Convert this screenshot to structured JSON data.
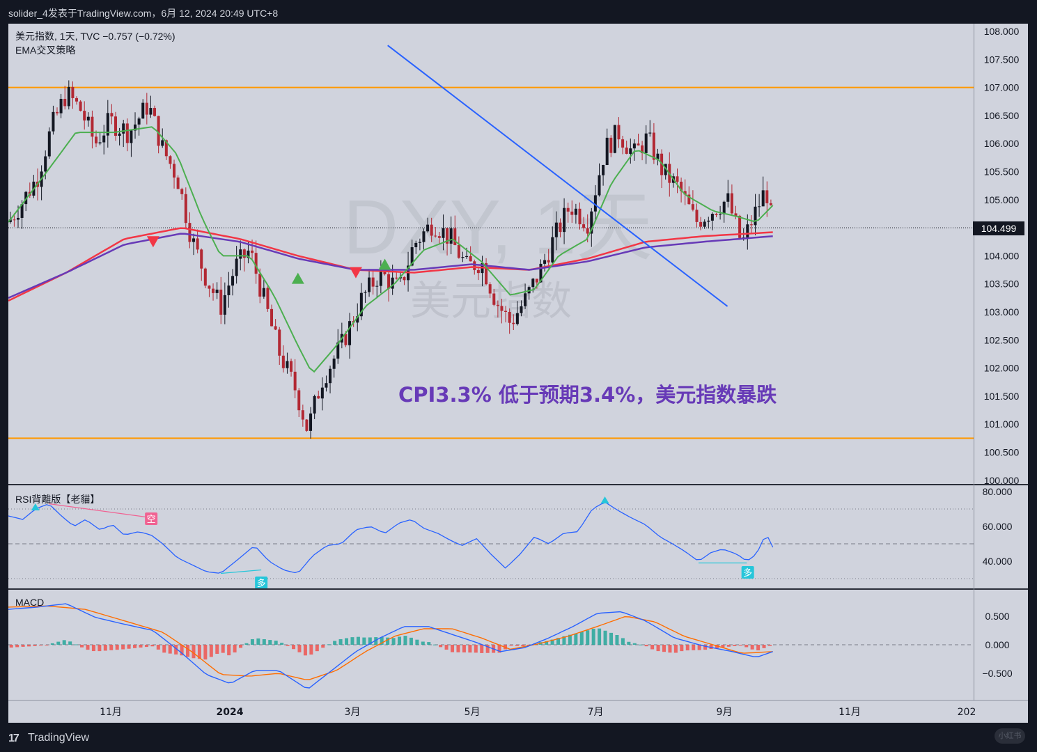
{
  "header": {
    "publish_line": "solider_4发表于TradingView.com，6月 12, 2024 20:49 UTC+8"
  },
  "legend": {
    "symbol_line": "美元指数, 1天, TVC  −0.757 (−0.72%)",
    "strategy_name": "EMA交叉策略",
    "rsi_name": "RSI背離版【老貓】",
    "macd_name": "MACD"
  },
  "watermark": {
    "ticker": "DXY, 1天",
    "name": "美元指数"
  },
  "annotation": {
    "text": "CPI3.3% 低于预期3.4%，美元指数暴跌"
  },
  "price_tag": "104.499",
  "signals": {
    "short_label": "空",
    "long_label": "多"
  },
  "footer": {
    "brand_logo": "17",
    "brand_text": "TradingView",
    "corner_badge": "小红书"
  },
  "colors": {
    "up_candle": "#131722",
    "down_candle": "#b22833",
    "ema_fast": "#4caf50",
    "ema_mid": "#f23645",
    "ema_slow": "#673ab7",
    "trendline": "#2962ff",
    "support_resistance": "#ff9800",
    "rsi_line": "#2962ff",
    "macd_line": "#2962ff",
    "signal_line": "#ff6d00",
    "hist_pos": "#26a69a",
    "hist_neg": "#ef5350",
    "annotation": "#673ab7"
  },
  "chart_data": [
    {
      "type": "candlestick",
      "title": "美元指数, 1天, TVC",
      "xaxis_ticks": [
        "11月",
        "2024",
        "3月",
        "5月",
        "7月",
        "9月",
        "11月",
        "202"
      ],
      "ylim": [
        100.0,
        108.0
      ],
      "ytick_labels": [
        "108.000",
        "107.500",
        "107.000",
        "106.500",
        "106.000",
        "105.500",
        "105.000",
        "104.000",
        "103.500",
        "103.000",
        "102.500",
        "102.000",
        "101.500",
        "101.000",
        "100.500",
        "100.000"
      ],
      "last_price": 104.499,
      "close_path": [
        {
          "t": 0,
          "v": 104.6
        },
        {
          "t": 0.012,
          "v": 104.9
        },
        {
          "t": 0.03,
          "v": 105.4
        },
        {
          "t": 0.045,
          "v": 106.3
        },
        {
          "t": 0.06,
          "v": 106.9
        },
        {
          "t": 0.075,
          "v": 106.6
        },
        {
          "t": 0.09,
          "v": 106.0
        },
        {
          "t": 0.105,
          "v": 106.4
        },
        {
          "t": 0.125,
          "v": 106.2
        },
        {
          "t": 0.145,
          "v": 106.7
        },
        {
          "t": 0.16,
          "v": 105.9
        },
        {
          "t": 0.175,
          "v": 105.4
        },
        {
          "t": 0.19,
          "v": 104.3
        },
        {
          "t": 0.205,
          "v": 103.6
        },
        {
          "t": 0.22,
          "v": 103.1
        },
        {
          "t": 0.235,
          "v": 103.8
        },
        {
          "t": 0.25,
          "v": 104.1
        },
        {
          "t": 0.265,
          "v": 103.2
        },
        {
          "t": 0.28,
          "v": 102.3
        },
        {
          "t": 0.298,
          "v": 101.6
        },
        {
          "t": 0.31,
          "v": 100.9
        },
        {
          "t": 0.325,
          "v": 101.8
        },
        {
          "t": 0.345,
          "v": 102.4
        },
        {
          "t": 0.365,
          "v": 103.2
        },
        {
          "t": 0.385,
          "v": 103.7
        },
        {
          "t": 0.405,
          "v": 103.4
        },
        {
          "t": 0.42,
          "v": 104.2
        },
        {
          "t": 0.44,
          "v": 104.6
        },
        {
          "t": 0.458,
          "v": 104.3
        },
        {
          "t": 0.475,
          "v": 103.8
        },
        {
          "t": 0.49,
          "v": 103.9
        },
        {
          "t": 0.505,
          "v": 103.2
        },
        {
          "t": 0.52,
          "v": 102.8
        },
        {
          "t": 0.535,
          "v": 103.2
        },
        {
          "t": 0.55,
          "v": 103.7
        },
        {
          "t": 0.565,
          "v": 104.3
        },
        {
          "t": 0.582,
          "v": 104.9
        },
        {
          "t": 0.6,
          "v": 104.6
        },
        {
          "t": 0.618,
          "v": 105.9
        },
        {
          "t": 0.632,
          "v": 106.2
        },
        {
          "t": 0.648,
          "v": 105.8
        },
        {
          "t": 0.662,
          "v": 106.1
        },
        {
          "t": 0.678,
          "v": 105.5
        },
        {
          "t": 0.695,
          "v": 105.2
        },
        {
          "t": 0.712,
          "v": 104.6
        },
        {
          "t": 0.728,
          "v": 104.8
        },
        {
          "t": 0.745,
          "v": 105.0
        },
        {
          "t": 0.76,
          "v": 104.2
        },
        {
          "t": 0.772,
          "v": 104.7
        },
        {
          "t": 0.785,
          "v": 105.2
        },
        {
          "t": 0.792,
          "v": 104.5
        }
      ],
      "ema_fast": [
        {
          "t": 0,
          "v": 104.6
        },
        {
          "t": 0.04,
          "v": 105.5
        },
        {
          "t": 0.07,
          "v": 106.2
        },
        {
          "t": 0.11,
          "v": 106.2
        },
        {
          "t": 0.15,
          "v": 106.3
        },
        {
          "t": 0.175,
          "v": 105.8
        },
        {
          "t": 0.2,
          "v": 104.7
        },
        {
          "t": 0.22,
          "v": 104.0
        },
        {
          "t": 0.25,
          "v": 104.0
        },
        {
          "t": 0.275,
          "v": 103.3
        },
        {
          "t": 0.3,
          "v": 102.4
        },
        {
          "t": 0.315,
          "v": 101.9
        },
        {
          "t": 0.34,
          "v": 102.4
        },
        {
          "t": 0.37,
          "v": 103.1
        },
        {
          "t": 0.4,
          "v": 103.5
        },
        {
          "t": 0.43,
          "v": 104.1
        },
        {
          "t": 0.46,
          "v": 104.3
        },
        {
          "t": 0.49,
          "v": 103.9
        },
        {
          "t": 0.52,
          "v": 103.3
        },
        {
          "t": 0.545,
          "v": 103.4
        },
        {
          "t": 0.57,
          "v": 104.0
        },
        {
          "t": 0.6,
          "v": 104.3
        },
        {
          "t": 0.625,
          "v": 105.3
        },
        {
          "t": 0.65,
          "v": 105.9
        },
        {
          "t": 0.675,
          "v": 105.7
        },
        {
          "t": 0.7,
          "v": 105.1
        },
        {
          "t": 0.73,
          "v": 104.8
        },
        {
          "t": 0.755,
          "v": 104.7
        },
        {
          "t": 0.775,
          "v": 104.6
        },
        {
          "t": 0.792,
          "v": 104.9
        }
      ],
      "ema_mid": [
        {
          "t": 0,
          "v": 103.2
        },
        {
          "t": 0.06,
          "v": 103.7
        },
        {
          "t": 0.12,
          "v": 104.3
        },
        {
          "t": 0.18,
          "v": 104.5
        },
        {
          "t": 0.24,
          "v": 104.3
        },
        {
          "t": 0.3,
          "v": 104.0
        },
        {
          "t": 0.36,
          "v": 103.75
        },
        {
          "t": 0.42,
          "v": 103.7
        },
        {
          "t": 0.48,
          "v": 103.8
        },
        {
          "t": 0.54,
          "v": 103.75
        },
        {
          "t": 0.6,
          "v": 103.95
        },
        {
          "t": 0.66,
          "v": 104.25
        },
        {
          "t": 0.72,
          "v": 104.35
        },
        {
          "t": 0.792,
          "v": 104.42
        }
      ],
      "ema_slow": [
        {
          "t": 0,
          "v": 103.25
        },
        {
          "t": 0.06,
          "v": 103.7
        },
        {
          "t": 0.12,
          "v": 104.2
        },
        {
          "t": 0.18,
          "v": 104.4
        },
        {
          "t": 0.24,
          "v": 104.25
        },
        {
          "t": 0.3,
          "v": 103.95
        },
        {
          "t": 0.36,
          "v": 103.75
        },
        {
          "t": 0.42,
          "v": 103.75
        },
        {
          "t": 0.48,
          "v": 103.85
        },
        {
          "t": 0.54,
          "v": 103.75
        },
        {
          "t": 0.6,
          "v": 103.9
        },
        {
          "t": 0.66,
          "v": 104.15
        },
        {
          "t": 0.72,
          "v": 104.25
        },
        {
          "t": 0.792,
          "v": 104.35
        }
      ],
      "horizontal_levels": [
        107.0,
        100.75
      ],
      "trendline": [
        {
          "t": 0.393,
          "v": 107.75
        },
        {
          "t": 0.745,
          "v": 103.1
        }
      ],
      "signals": [
        {
          "t": 0.15,
          "v": 104.25,
          "dir": "down"
        },
        {
          "t": 0.3,
          "v": 103.6,
          "dir": "up"
        },
        {
          "t": 0.36,
          "v": 103.7,
          "dir": "down"
        },
        {
          "t": 0.39,
          "v": 103.85,
          "dir": "up"
        }
      ]
    },
    {
      "type": "line",
      "title": "RSI背離版【老貓】",
      "ytick_labels": [
        "80.000",
        "60.000",
        "40.000"
      ],
      "ylim": [
        30,
        80
      ],
      "levels": [
        70,
        50,
        30
      ],
      "values": [
        {
          "t": 0,
          "v": 66
        },
        {
          "t": 0.015,
          "v": 64
        },
        {
          "t": 0.028,
          "v": 70
        },
        {
          "t": 0.042,
          "v": 73
        },
        {
          "t": 0.055,
          "v": 66
        },
        {
          "t": 0.068,
          "v": 60
        },
        {
          "t": 0.08,
          "v": 64
        },
        {
          "t": 0.095,
          "v": 58
        },
        {
          "t": 0.108,
          "v": 61
        },
        {
          "t": 0.12,
          "v": 55
        },
        {
          "t": 0.135,
          "v": 57
        },
        {
          "t": 0.148,
          "v": 55
        },
        {
          "t": 0.16,
          "v": 50
        },
        {
          "t": 0.175,
          "v": 42
        },
        {
          "t": 0.19,
          "v": 38
        },
        {
          "t": 0.205,
          "v": 34
        },
        {
          "t": 0.22,
          "v": 33
        },
        {
          "t": 0.24,
          "v": 42
        },
        {
          "t": 0.255,
          "v": 49
        },
        {
          "t": 0.27,
          "v": 40
        },
        {
          "t": 0.285,
          "v": 35
        },
        {
          "t": 0.3,
          "v": 33
        },
        {
          "t": 0.315,
          "v": 43
        },
        {
          "t": 0.33,
          "v": 49
        },
        {
          "t": 0.345,
          "v": 50
        },
        {
          "t": 0.36,
          "v": 58
        },
        {
          "t": 0.375,
          "v": 60
        },
        {
          "t": 0.39,
          "v": 56
        },
        {
          "t": 0.405,
          "v": 62
        },
        {
          "t": 0.418,
          "v": 64
        },
        {
          "t": 0.43,
          "v": 59
        },
        {
          "t": 0.445,
          "v": 56
        },
        {
          "t": 0.458,
          "v": 52
        },
        {
          "t": 0.47,
          "v": 49
        },
        {
          "t": 0.485,
          "v": 53
        },
        {
          "t": 0.5,
          "v": 44
        },
        {
          "t": 0.515,
          "v": 36
        },
        {
          "t": 0.53,
          "v": 44
        },
        {
          "t": 0.545,
          "v": 54
        },
        {
          "t": 0.56,
          "v": 50
        },
        {
          "t": 0.575,
          "v": 56
        },
        {
          "t": 0.59,
          "v": 57
        },
        {
          "t": 0.605,
          "v": 70
        },
        {
          "t": 0.618,
          "v": 74
        },
        {
          "t": 0.632,
          "v": 69
        },
        {
          "t": 0.645,
          "v": 65
        },
        {
          "t": 0.66,
          "v": 61
        },
        {
          "t": 0.675,
          "v": 54
        },
        {
          "t": 0.688,
          "v": 50
        },
        {
          "t": 0.7,
          "v": 46
        },
        {
          "t": 0.715,
          "v": 40
        },
        {
          "t": 0.728,
          "v": 45
        },
        {
          "t": 0.74,
          "v": 47
        },
        {
          "t": 0.755,
          "v": 44
        },
        {
          "t": 0.765,
          "v": 40
        },
        {
          "t": 0.775,
          "v": 44
        },
        {
          "t": 0.785,
          "v": 56
        },
        {
          "t": 0.792,
          "v": 48
        }
      ],
      "divergences": [
        {
          "from": {
            "t": 0.042,
            "v": 73
          },
          "to": {
            "t": 0.148,
            "v": 65
          },
          "kind": "bearish"
        },
        {
          "from": {
            "t": 0.22,
            "v": 33
          },
          "to": {
            "t": 0.262,
            "v": 35
          },
          "kind": "bullish"
        },
        {
          "from": {
            "t": 0.715,
            "v": 39
          },
          "to": {
            "t": 0.765,
            "v": 39
          },
          "kind": "bullish"
        }
      ]
    },
    {
      "type": "line",
      "title": "MACD",
      "ytick_labels": [
        "0.500",
        "0.000",
        "−0.500"
      ],
      "ylim": [
        -0.8,
        0.8
      ],
      "macd": [
        {
          "t": 0,
          "v": 0.62
        },
        {
          "t": 0.03,
          "v": 0.66
        },
        {
          "t": 0.06,
          "v": 0.72
        },
        {
          "t": 0.09,
          "v": 0.48
        },
        {
          "t": 0.12,
          "v": 0.36
        },
        {
          "t": 0.15,
          "v": 0.25
        },
        {
          "t": 0.18,
          "v": -0.15
        },
        {
          "t": 0.205,
          "v": -0.52
        },
        {
          "t": 0.23,
          "v": -0.68
        },
        {
          "t": 0.255,
          "v": -0.45
        },
        {
          "t": 0.28,
          "v": -0.45
        },
        {
          "t": 0.31,
          "v": -0.78
        },
        {
          "t": 0.335,
          "v": -0.45
        },
        {
          "t": 0.36,
          "v": -0.12
        },
        {
          "t": 0.385,
          "v": 0.12
        },
        {
          "t": 0.41,
          "v": 0.32
        },
        {
          "t": 0.435,
          "v": 0.32
        },
        {
          "t": 0.46,
          "v": 0.18
        },
        {
          "t": 0.485,
          "v": 0.04
        },
        {
          "t": 0.51,
          "v": -0.12
        },
        {
          "t": 0.535,
          "v": -0.05
        },
        {
          "t": 0.56,
          "v": 0.12
        },
        {
          "t": 0.585,
          "v": 0.32
        },
        {
          "t": 0.61,
          "v": 0.55
        },
        {
          "t": 0.635,
          "v": 0.58
        },
        {
          "t": 0.66,
          "v": 0.42
        },
        {
          "t": 0.69,
          "v": 0.12
        },
        {
          "t": 0.72,
          "v": -0.02
        },
        {
          "t": 0.75,
          "v": -0.12
        },
        {
          "t": 0.775,
          "v": -0.22
        },
        {
          "t": 0.792,
          "v": -0.12
        }
      ],
      "signal": [
        {
          "t": 0,
          "v": 0.66
        },
        {
          "t": 0.04,
          "v": 0.68
        },
        {
          "t": 0.08,
          "v": 0.62
        },
        {
          "t": 0.12,
          "v": 0.42
        },
        {
          "t": 0.16,
          "v": 0.22
        },
        {
          "t": 0.19,
          "v": -0.12
        },
        {
          "t": 0.22,
          "v": -0.52
        },
        {
          "t": 0.25,
          "v": -0.55
        },
        {
          "t": 0.28,
          "v": -0.5
        },
        {
          "t": 0.31,
          "v": -0.62
        },
        {
          "t": 0.34,
          "v": -0.45
        },
        {
          "t": 0.37,
          "v": -0.12
        },
        {
          "t": 0.4,
          "v": 0.15
        },
        {
          "t": 0.43,
          "v": 0.28
        },
        {
          "t": 0.46,
          "v": 0.28
        },
        {
          "t": 0.49,
          "v": 0.12
        },
        {
          "t": 0.52,
          "v": -0.08
        },
        {
          "t": 0.55,
          "v": 0.02
        },
        {
          "t": 0.58,
          "v": 0.15
        },
        {
          "t": 0.61,
          "v": 0.32
        },
        {
          "t": 0.64,
          "v": 0.5
        },
        {
          "t": 0.67,
          "v": 0.4
        },
        {
          "t": 0.7,
          "v": 0.15
        },
        {
          "t": 0.73,
          "v": 0.0
        },
        {
          "t": 0.76,
          "v": -0.15
        },
        {
          "t": 0.792,
          "v": -0.12
        }
      ]
    }
  ]
}
